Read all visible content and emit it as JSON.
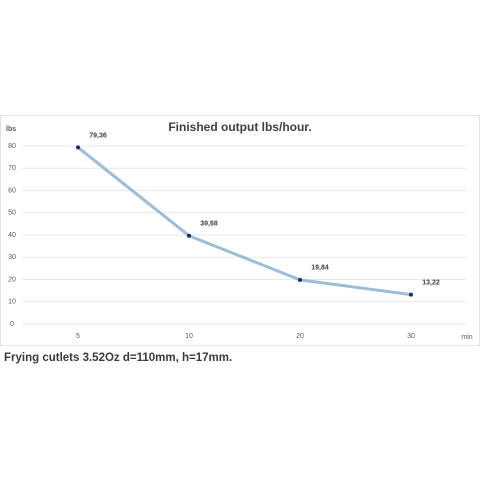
{
  "chart_data": {
    "type": "line",
    "title": "Finished output lbs/hour.",
    "y_label": "lbs",
    "x_label": "min",
    "caption": "Frying cutlets 3.52Oz d=110mm, h=17mm.",
    "categories": [
      "5",
      "10",
      "20",
      "30"
    ],
    "series": [
      {
        "name": "Finished output",
        "color": "#9dbcd8",
        "marker_color": "#1f2a6b",
        "values": [
          79.36,
          39.68,
          19.84,
          13.22
        ],
        "value_labels": [
          "79,36",
          "39,68",
          "19,84",
          "13,22"
        ]
      }
    ],
    "ylim": [
      0,
      80
    ],
    "yticks": [
      0,
      10,
      20,
      30,
      40,
      50,
      60,
      70,
      80
    ],
    "grid": true
  }
}
